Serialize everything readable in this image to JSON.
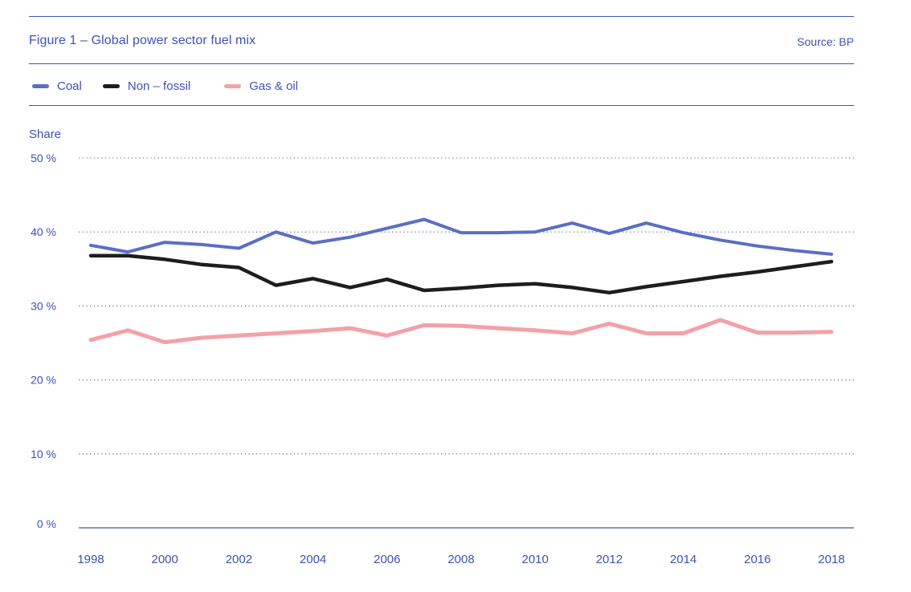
{
  "header": {
    "title": "Figure 1 – Global power sector fuel mix",
    "source": "Source: BP"
  },
  "axis": {
    "ylabel": "Share"
  },
  "colors": {
    "accent": "#3d53b5",
    "text_blue": "#3c52b4",
    "grid": "#5a6a99",
    "coal": "#5a6ec6",
    "non_fossil": "#1d1d1b",
    "gas_oil": "#f4a0a9"
  },
  "chart_data": {
    "type": "line",
    "title": "Figure 1 – Global power sector fuel mix",
    "source": "Source: BP",
    "ylabel": "Share",
    "ylim": [
      0,
      50
    ],
    "grid": "horizontal-dotted",
    "legend_position": "top-left",
    "x": [
      1998,
      1999,
      2000,
      2001,
      2002,
      2003,
      2004,
      2005,
      2006,
      2007,
      2008,
      2009,
      2010,
      2011,
      2012,
      2013,
      2014,
      2015,
      2016,
      2017,
      2018
    ],
    "x_tick_labels": [
      "1998",
      "2000",
      "2002",
      "2004",
      "2006",
      "2008",
      "2010",
      "2012",
      "2014",
      "2016",
      "2018"
    ],
    "y_ticks": [
      {
        "value": 50,
        "label": "50 %"
      },
      {
        "value": 40,
        "label": "40 %"
      },
      {
        "value": 30,
        "label": "30 %"
      },
      {
        "value": 20,
        "label": "20 %"
      },
      {
        "value": 10,
        "label": "10 %"
      },
      {
        "value": 0,
        "label": "0 %"
      }
    ],
    "series": [
      {
        "name": "Coal",
        "color": "#5a6ec6",
        "values": [
          38.2,
          37.3,
          38.6,
          38.3,
          37.8,
          40.0,
          38.5,
          39.3,
          40.5,
          41.7,
          39.9,
          39.9,
          40.0,
          41.2,
          39.8,
          41.2,
          39.9,
          38.9,
          38.1,
          37.5,
          37.0
        ]
      },
      {
        "name": "Non – fossil",
        "color": "#1d1d1b",
        "values": [
          36.8,
          36.8,
          36.3,
          35.6,
          35.2,
          32.8,
          33.7,
          32.5,
          33.6,
          32.1,
          32.4,
          32.8,
          33.0,
          32.5,
          31.8,
          32.6,
          33.3,
          34.0,
          34.6,
          35.3,
          36.0
        ]
      },
      {
        "name": "Gas & oil",
        "color": "#f4a0a9",
        "values": [
          25.4,
          26.7,
          25.1,
          25.7,
          26.0,
          26.3,
          26.6,
          27.0,
          26.0,
          27.4,
          27.3,
          27.0,
          26.7,
          26.3,
          27.6,
          26.3,
          26.3,
          28.1,
          26.4,
          26.4,
          26.5
        ]
      }
    ]
  }
}
